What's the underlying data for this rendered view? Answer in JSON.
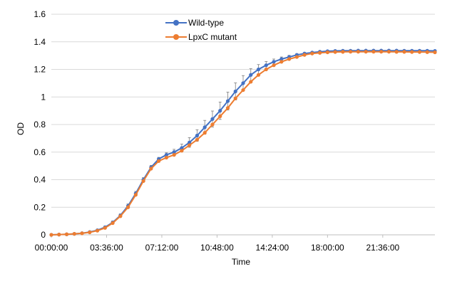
{
  "chart_data": {
    "type": "line",
    "title": "",
    "xlabel": "Time",
    "ylabel": "OD",
    "ylim": [
      0,
      1.6
    ],
    "yticks": [
      "0",
      "0.2",
      "0.4",
      "0.6",
      "0.8",
      "1",
      "1.2",
      "1.4",
      "1.6"
    ],
    "xlim_hours": [
      0,
      25
    ],
    "xticks": [
      "00:00:00",
      "03:36:00",
      "07:12:00",
      "10:48:00",
      "14:24:00",
      "18:00:00",
      "21:36:00"
    ],
    "grid": true,
    "legend_position": "top-left",
    "x_hours": [
      0,
      0.5,
      1,
      1.5,
      2,
      2.5,
      3,
      3.5,
      4,
      4.5,
      5,
      5.5,
      6,
      6.5,
      7,
      7.5,
      8,
      8.5,
      9,
      9.5,
      10,
      10.5,
      11,
      11.5,
      12,
      12.5,
      13,
      13.5,
      14,
      14.5,
      15,
      15.5,
      16,
      16.5,
      17,
      17.5,
      18,
      18.5,
      19,
      19.5,
      20,
      20.5,
      21,
      21.5,
      22,
      22.5,
      23,
      23.5,
      24,
      24.5,
      25
    ],
    "series": [
      {
        "name": "Wild-type",
        "color": "#4472c4",
        "values": [
          0.0,
          0.002,
          0.004,
          0.007,
          0.012,
          0.02,
          0.033,
          0.055,
          0.09,
          0.14,
          0.21,
          0.3,
          0.4,
          0.49,
          0.55,
          0.58,
          0.6,
          0.63,
          0.67,
          0.72,
          0.78,
          0.84,
          0.9,
          0.97,
          1.04,
          1.1,
          1.16,
          1.2,
          1.23,
          1.255,
          1.275,
          1.29,
          1.305,
          1.315,
          1.322,
          1.328,
          1.332,
          1.334,
          1.335,
          1.335,
          1.336,
          1.336,
          1.336,
          1.336,
          1.336,
          1.336,
          1.335,
          1.335,
          1.335,
          1.335,
          1.334
        ]
      },
      {
        "name": "LpxC mutant",
        "color": "#ed7d31",
        "values": [
          0.0,
          0.002,
          0.004,
          0.007,
          0.011,
          0.018,
          0.03,
          0.05,
          0.085,
          0.135,
          0.2,
          0.29,
          0.39,
          0.48,
          0.535,
          0.56,
          0.58,
          0.61,
          0.65,
          0.69,
          0.74,
          0.8,
          0.86,
          0.92,
          0.99,
          1.05,
          1.11,
          1.16,
          1.2,
          1.23,
          1.255,
          1.275,
          1.29,
          1.305,
          1.315,
          1.32,
          1.324,
          1.326,
          1.327,
          1.328,
          1.328,
          1.328,
          1.328,
          1.328,
          1.328,
          1.327,
          1.327,
          1.326,
          1.326,
          1.325,
          1.324
        ]
      }
    ],
    "error_bars": [
      0.0,
      0.001,
      0.001,
      0.002,
      0.003,
      0.004,
      0.006,
      0.008,
      0.01,
      0.012,
      0.014,
      0.015,
      0.015,
      0.014,
      0.012,
      0.015,
      0.02,
      0.028,
      0.035,
      0.042,
      0.05,
      0.058,
      0.063,
      0.065,
      0.062,
      0.055,
      0.045,
      0.035,
      0.027,
      0.02,
      0.015,
      0.012,
      0.009,
      0.007,
      0.006,
      0.005,
      0.005,
      0.005,
      0.005,
      0.005,
      0.005,
      0.005,
      0.005,
      0.005,
      0.005,
      0.005,
      0.005,
      0.005,
      0.005,
      0.005,
      0.005
    ]
  }
}
